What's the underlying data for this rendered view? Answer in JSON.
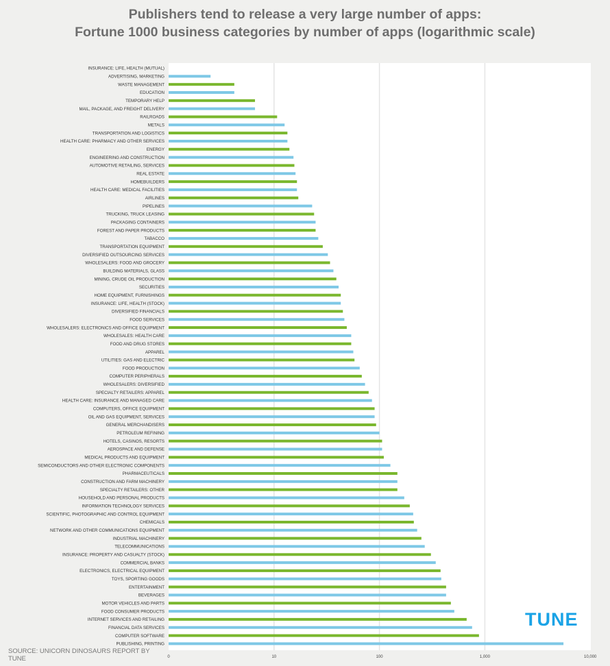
{
  "chart_data": {
    "type": "bar",
    "orientation": "horizontal",
    "title": "Publishers tend to release a very large number of apps:",
    "subtitle": "Fortune 1000 business categories by number of apps (logarithmic scale)",
    "xscale": "log",
    "xlim": [
      1,
      10000
    ],
    "xticks": [
      1,
      10,
      100,
      1000,
      10000
    ],
    "xtick_labels": [
      "0",
      "10",
      "100",
      "1,000",
      "10,000"
    ],
    "grid": true,
    "colors": [
      "#7ab72e",
      "#7ec8e6"
    ],
    "categories": [
      "INSURANCE: LIFE, HEALTH (MUTUAL)",
      "ADVERTISING, MARKETING",
      "WASTE MANAGEMENT",
      "EDUCATION",
      "TEMPORARY HELP",
      "MAIL, PACKAGE, AND FREIGHT DELIVERY",
      "RAILROADS",
      "METALS",
      "TRANSPORTATION AND LOGISTICS",
      "HEALTH CARE: PHARMACY AND OTHER SERVICES",
      "ENERGY",
      "ENGINEERING AND CONSTRUCTION",
      "AUTOMOTIVE RETAILING, SERVICES",
      "REAL ESTATE",
      "HOMEBUILDERS",
      "HEALTH CARE: MEDICAL FACILITIES",
      "AIRLINES",
      "PIPELINES",
      "TRUCKING, TRUCK LEASING",
      "PACKAGING CONTAINERS",
      "FOREST AND PAPER PRODUCTS",
      "TABACCO",
      "TRANSPORTATION EQUIPMENT",
      "DIVERSIFIED OUTSOURCING SERVICES",
      "WHOLESALERS: FOOD AND GROCERY",
      "BUILDING MATERIALS, GLASS",
      "MINING, CRUDE OIL PRODUCTION",
      "SECURITIES",
      "HOME EQUIPMENT, FURNISHINGS",
      "INSURANCE: LIFE, HEALTH (STOCK)",
      "DIVERSIFIED FINANCIALS",
      "FOOD SERVICES",
      "WHOLESALERS: ELECTRONICS AND OFFICE EQUIPMENT",
      "WHOLESALES: HEALTH CARE",
      "FOOD AND DRUG STORES",
      "APPAREL",
      "UTILITIES: GAS AND ELECTRIC",
      "FOOD PRODUCTION",
      "COMPUTER PERIPHERALS",
      "WHOLESALERS: DIVERSIFIED",
      "SPECIALTY RETAILERS: APPAREL",
      "HEALTH CARE: INSURANCE AND MANAGED CARE",
      "COMPUTERS, OFFICE EQUIPMENT",
      "OIL AND GAS EQUIPMENT, SERVICES",
      "GENERAL MERCHANDISERS",
      "PETROLEUM REFINING",
      "HOTELS, CASINOS, RESORTS",
      "AEROSPACE AND DEFENSE",
      "MEDICAL PRODUCTS AND EQUIPMENT",
      "SEMICONDUCTORS AND OTHER ELECTRONIC COMPONENTS",
      "PHARMACEUTICALS",
      "CONSTRUCTION AND FARM MACHINERY",
      "SPECIALTY RETAILERS: OTHER",
      "HOUSEHOLD AND PERSONAL PRODUCTS",
      "INFORMATION TECHNOLOGY SERVICES",
      "SCIENTIFIC, PHOTOGRAPHIC AND CONTROL EQUIPMENT",
      "CHEMICALS",
      "NETWORK AND OTHER COMMUNICATIONS EQUIPMENT",
      "INDUSTRIAL MACHINERY",
      "TELECOMMUNICATIONS",
      "INSURANCE: PROPERTY AND CASUALTY (STOCK)",
      "COMMERCIAL BANKS",
      "ELECTRONICS, ELECTRICAL EQUIPMENT",
      "TOYS, SPORTING GOODS",
      "ENTERTAINMENT",
      "BEVERAGES",
      "MOTOR VEHICLES AND PARTS",
      "FOOD CONSUMER PRODUCTS",
      "INTERNET SERVICES AND RETAILING",
      "FINANCIAL DATA SERVICES",
      "COMPUTER SOFTWARE",
      "PUBLISHING, PRINTING"
    ],
    "values": [
      1,
      2.5,
      4.2,
      4.2,
      6.6,
      6.6,
      10.7,
      12.6,
      13.4,
      13.4,
      14,
      15.3,
      15.6,
      16,
      16.5,
      16.5,
      17,
      23,
      24,
      24.8,
      24.8,
      26.3,
      29,
      32.4,
      34,
      36.6,
      39,
      41,
      43,
      43,
      45,
      46.5,
      49,
      54,
      54,
      56.5,
      58,
      65,
      68,
      73,
      79,
      85,
      90,
      90,
      93,
      100,
      106,
      106,
      110,
      127,
      148,
      148,
      148,
      172,
      194,
      209,
      212,
      228,
      250,
      269,
      308,
      342,
      380,
      386,
      429,
      429,
      476,
      513,
      672,
      757,
      880,
      5570
    ]
  },
  "source": "SOURCE: UNICORN DINOSAURS REPORT BY TUNE",
  "logo": "TUNE"
}
